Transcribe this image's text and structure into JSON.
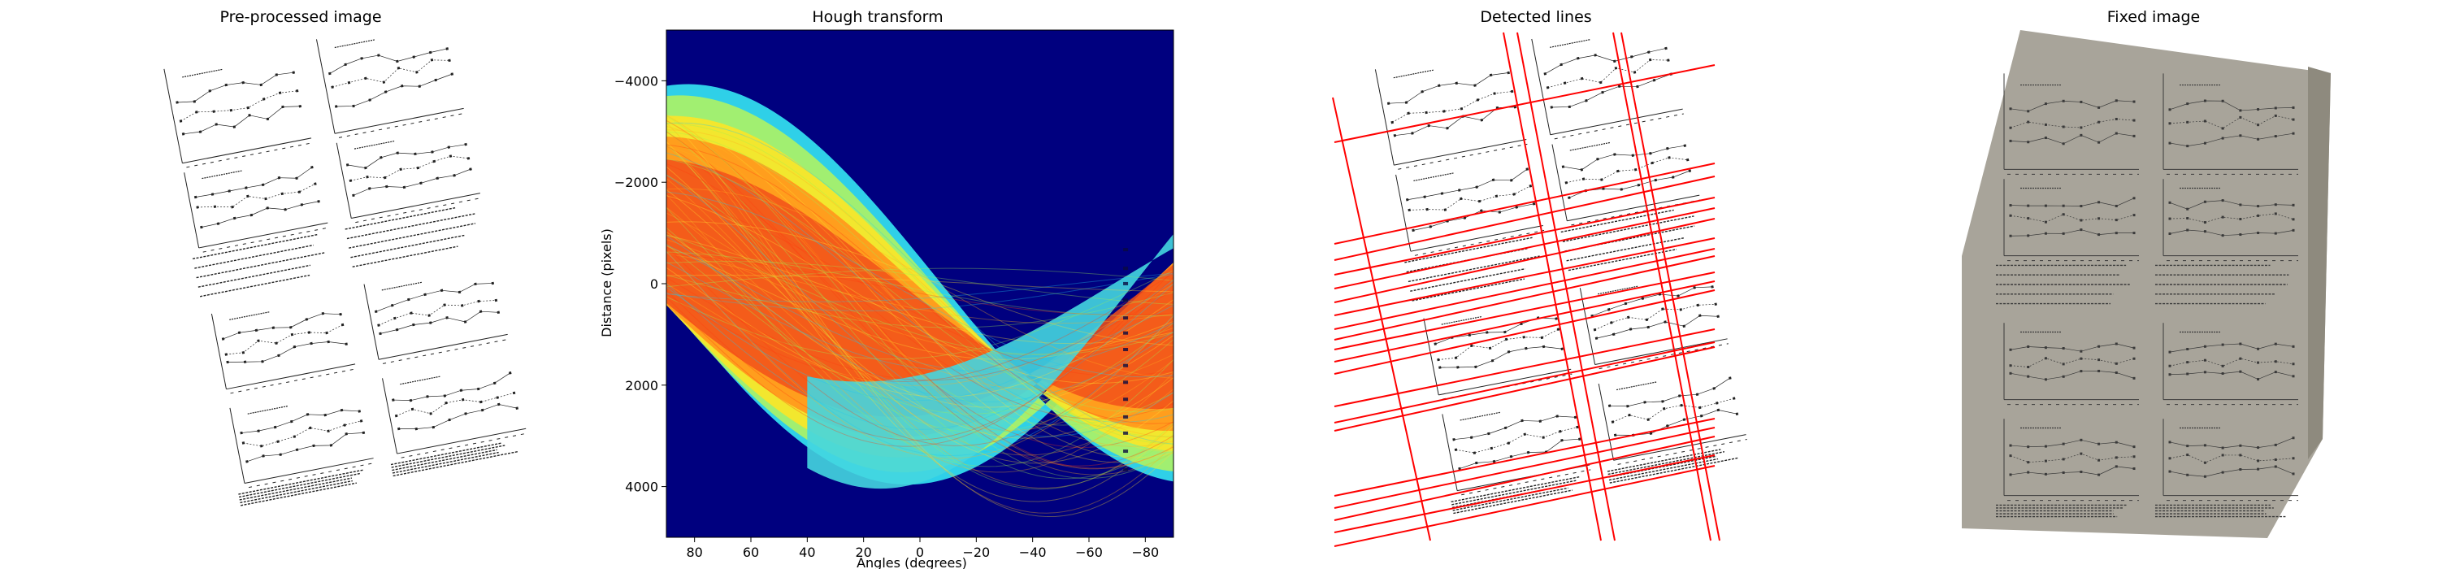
{
  "figure": {
    "panels": [
      {
        "title": "Pre-processed image"
      },
      {
        "title": "Hough transform"
      },
      {
        "title": "Detected lines"
      },
      {
        "title": "Fixed image"
      }
    ]
  },
  "chart_data": {
    "type": "heatmap",
    "title": "Hough transform",
    "xlabel": "Angles (degrees)",
    "ylabel": "Distance (pixels)",
    "xlim": [
      90,
      -90
    ],
    "ylim": [
      5000,
      -5000
    ],
    "xticks": [
      "80",
      "60",
      "40",
      "20",
      "0",
      "−20",
      "−40",
      "−60",
      "−80"
    ],
    "xtick_values": [
      80,
      60,
      40,
      20,
      0,
      -20,
      -40,
      -60,
      -80
    ],
    "yticks": [
      "−4000",
      "−2000",
      "0",
      "2000",
      "4000"
    ],
    "ytick_values": [
      -4000,
      -2000,
      0,
      2000,
      4000
    ],
    "colormap": "jet",
    "background_color": "#00007f"
  },
  "detected_lines": {
    "color": "#ff0000"
  }
}
